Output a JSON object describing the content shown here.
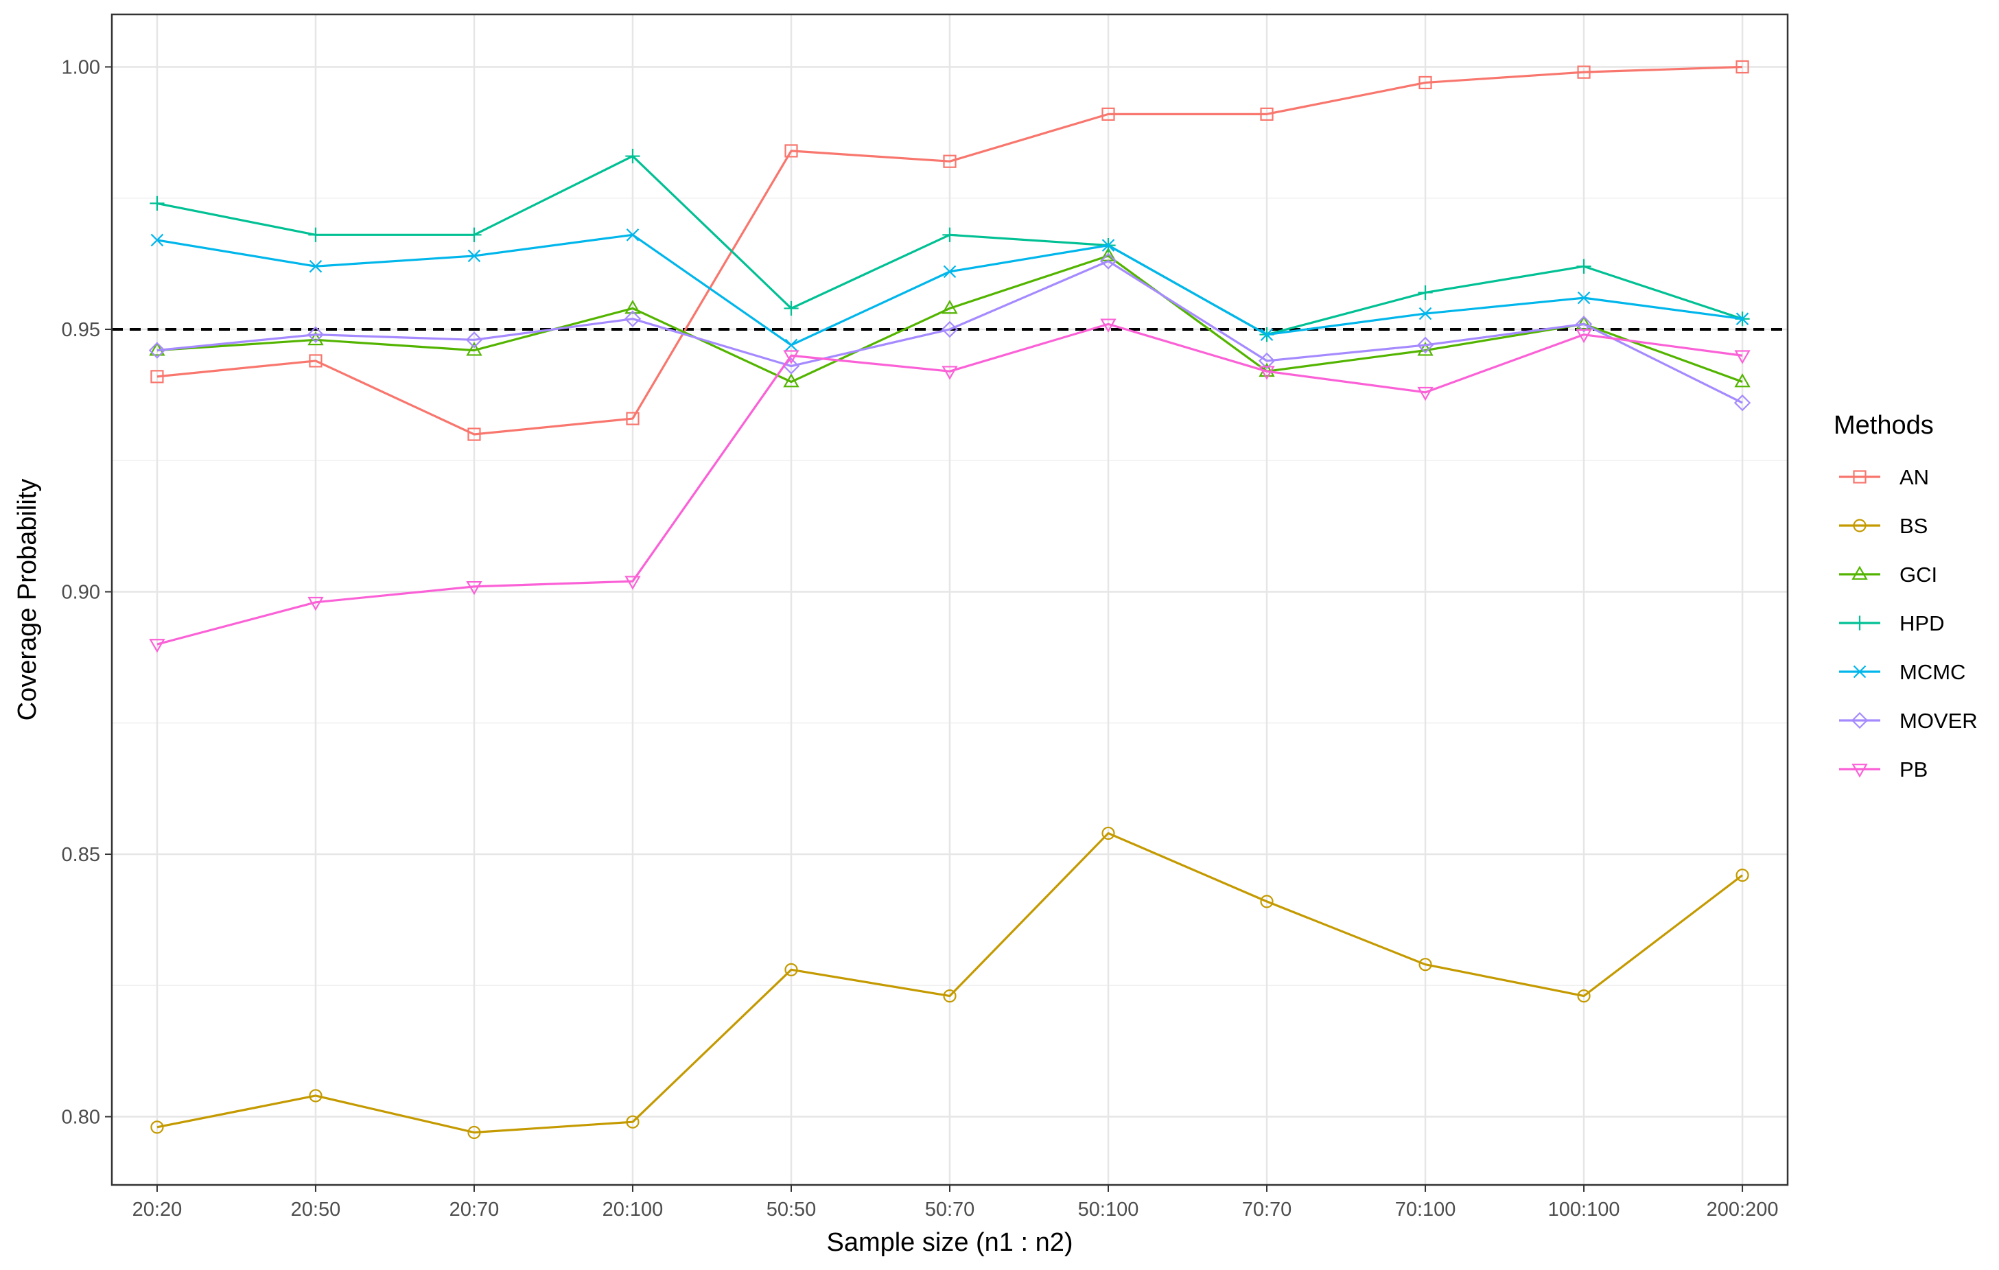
{
  "chart_data": {
    "type": "line",
    "xlabel": "Sample size (n1 : n2)",
    "ylabel": "Coverage Probability",
    "categories": [
      "20:20",
      "20:50",
      "20:70",
      "20:100",
      "50:50",
      "50:70",
      "50:100",
      "70:70",
      "70:100",
      "100:100",
      "200:200"
    ],
    "ylim": [
      0.787,
      1.01
    ],
    "yticks": [
      "0.80",
      "0.85",
      "0.90",
      "0.95",
      "1.00"
    ],
    "reference_line": {
      "y": 0.95,
      "style": "dashed",
      "color": "#000000"
    },
    "legend": {
      "title": "Methods",
      "placement": "right"
    },
    "grid": true,
    "series": [
      {
        "name": "AN",
        "color": "#F8766D",
        "marker": "square",
        "values": [
          0.941,
          0.944,
          0.93,
          0.933,
          0.984,
          0.982,
          0.991,
          0.991,
          0.997,
          0.999,
          1.0
        ]
      },
      {
        "name": "BS",
        "color": "#C49A00",
        "marker": "circle",
        "values": [
          0.798,
          0.804,
          0.797,
          0.799,
          0.828,
          0.823,
          0.854,
          0.841,
          0.829,
          0.823,
          0.846
        ]
      },
      {
        "name": "GCI",
        "color": "#53B400",
        "marker": "triangle-up",
        "values": [
          0.946,
          0.948,
          0.946,
          0.954,
          0.94,
          0.954,
          0.964,
          0.942,
          0.946,
          0.951,
          0.94
        ]
      },
      {
        "name": "HPD",
        "color": "#00C094",
        "marker": "plus",
        "values": [
          0.974,
          0.968,
          0.968,
          0.983,
          0.954,
          0.968,
          0.966,
          0.949,
          0.957,
          0.962,
          0.952
        ]
      },
      {
        "name": "MCMC",
        "color": "#00B6EB",
        "marker": "cross",
        "values": [
          0.967,
          0.962,
          0.964,
          0.968,
          0.947,
          0.961,
          0.966,
          0.949,
          0.953,
          0.956,
          0.952
        ]
      },
      {
        "name": "MOVER",
        "color": "#A58AFF",
        "marker": "diamond",
        "values": [
          0.946,
          0.949,
          0.948,
          0.952,
          0.943,
          0.95,
          0.963,
          0.944,
          0.947,
          0.951,
          0.936
        ]
      },
      {
        "name": "PB",
        "color": "#FB61D7",
        "marker": "triangle-down",
        "values": [
          0.89,
          0.898,
          0.901,
          0.902,
          0.945,
          0.942,
          0.951,
          0.942,
          0.938,
          0.949,
          0.945
        ]
      }
    ]
  }
}
